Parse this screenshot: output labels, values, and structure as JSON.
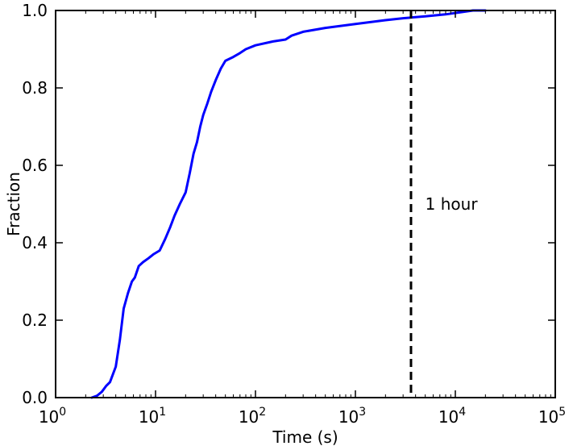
{
  "chart_data": {
    "type": "line",
    "xscale": "log",
    "xlim": [
      1,
      100000
    ],
    "ylim": [
      0.0,
      1.0
    ],
    "xlabel": "Time (s)",
    "ylabel": "Fraction",
    "title": "",
    "grid": false,
    "xticks": [
      {
        "value": 1,
        "base": "10",
        "exp": "0"
      },
      {
        "value": 10,
        "base": "10",
        "exp": "1"
      },
      {
        "value": 100,
        "base": "10",
        "exp": "2"
      },
      {
        "value": 1000,
        "base": "10",
        "exp": "3"
      },
      {
        "value": 10000,
        "base": "10",
        "exp": "4"
      },
      {
        "value": 100000,
        "base": "10",
        "exp": "5"
      }
    ],
    "yticks": [
      {
        "value": 0.0,
        "label": "0.0"
      },
      {
        "value": 0.2,
        "label": "0.2"
      },
      {
        "value": 0.4,
        "label": "0.4"
      },
      {
        "value": 0.6,
        "label": "0.6"
      },
      {
        "value": 0.8,
        "label": "0.8"
      },
      {
        "value": 1.0,
        "label": "1.0"
      }
    ],
    "series": [
      {
        "color": "#0000ff",
        "x": [
          2.3,
          2.6,
          2.9,
          3.2,
          3.5,
          4.0,
          4.4,
          4.8,
          5.3,
          5.8,
          6.2,
          6.8,
          7.5,
          8.5,
          9.5,
          11.0,
          12.5,
          14.0,
          15.5,
          17.5,
          20.0,
          22.0,
          24.0,
          26.0,
          28.0,
          30.0,
          33.0,
          36.0,
          40.0,
          45.0,
          50.0,
          60.0,
          70.0,
          80.0,
          100.0,
          150.0,
          200.0,
          230.0,
          300.0,
          500.0,
          1000.0,
          2000.0,
          3000.0,
          5000.0,
          8000.0,
          11000.0,
          15000.0,
          20000.0
        ],
        "y": [
          0.0,
          0.005,
          0.015,
          0.03,
          0.04,
          0.08,
          0.15,
          0.23,
          0.27,
          0.3,
          0.31,
          0.34,
          0.35,
          0.36,
          0.37,
          0.38,
          0.41,
          0.44,
          0.47,
          0.5,
          0.53,
          0.58,
          0.63,
          0.66,
          0.7,
          0.73,
          0.76,
          0.79,
          0.82,
          0.85,
          0.87,
          0.88,
          0.89,
          0.9,
          0.91,
          0.92,
          0.925,
          0.935,
          0.945,
          0.955,
          0.965,
          0.975,
          0.98,
          0.985,
          0.99,
          0.995,
          1.0,
          1.0
        ]
      }
    ],
    "vline": {
      "x": 3600,
      "style": "dashed",
      "color": "#000000"
    },
    "annotations": [
      {
        "text": "1 hour",
        "x": 5000,
        "y": 0.5
      }
    ]
  }
}
